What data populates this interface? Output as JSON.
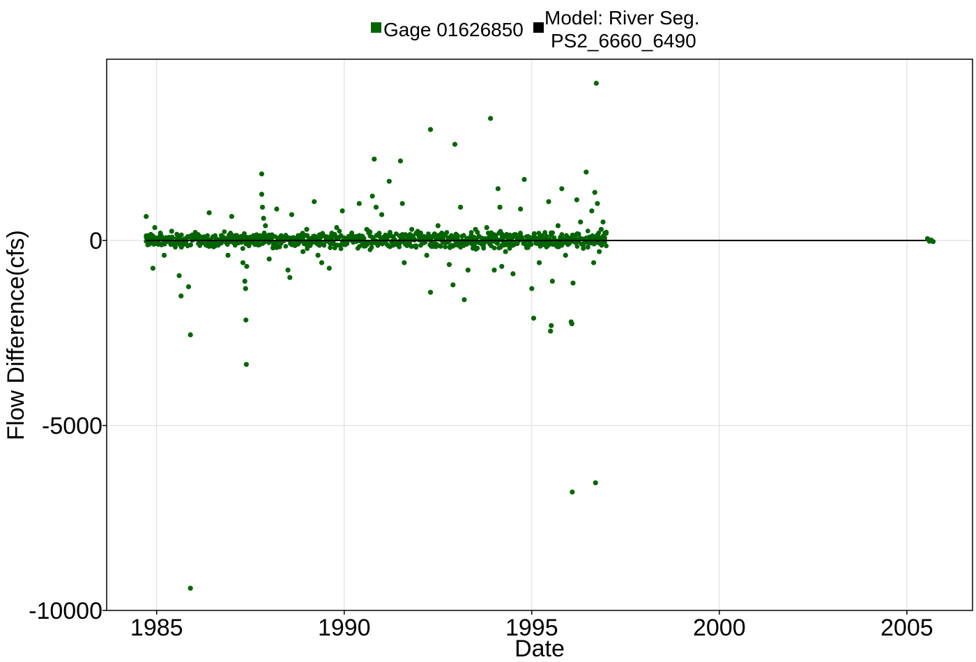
{
  "chart_data": {
    "type": "scatter",
    "title": "",
    "xlabel": "Date",
    "ylabel": "Flow Difference(cfs)",
    "x_scale": "date",
    "xlim": [
      "1983-09-01",
      "2006-10-01"
    ],
    "ylim": [
      -10000,
      4900
    ],
    "x_ticks": [
      1985,
      1990,
      1995,
      2000,
      2005
    ],
    "y_ticks": [
      -10000,
      -5000,
      0
    ],
    "y_tick_labels": [
      "-10000",
      "-5000",
      "0"
    ],
    "grid": true,
    "legend_position": "top",
    "series": [
      {
        "name": "Gage 01626850",
        "color": "#006400",
        "marker": "circle",
        "points": [
          [
            1984.72,
            650
          ],
          [
            1984.9,
            -750
          ],
          [
            1984.95,
            350
          ],
          [
            1985.1,
            200
          ],
          [
            1985.2,
            -400
          ],
          [
            1985.4,
            250
          ],
          [
            1985.6,
            -950
          ],
          [
            1985.65,
            -1500
          ],
          [
            1985.85,
            -1250
          ],
          [
            1985.9,
            -2550
          ],
          [
            1985.9,
            -9400
          ],
          [
            1986.4,
            750
          ],
          [
            1986.5,
            100
          ],
          [
            1986.9,
            -400
          ],
          [
            1987.0,
            650
          ],
          [
            1987.3,
            -600
          ],
          [
            1987.35,
            -1100
          ],
          [
            1987.37,
            -1300
          ],
          [
            1987.38,
            -2150
          ],
          [
            1987.39,
            -3350
          ],
          [
            1987.4,
            -700
          ],
          [
            1987.8,
            1800
          ],
          [
            1987.8,
            1250
          ],
          [
            1987.82,
            900
          ],
          [
            1987.85,
            600
          ],
          [
            1987.9,
            400
          ],
          [
            1988.0,
            -500
          ],
          [
            1988.1,
            -200
          ],
          [
            1988.2,
            850
          ],
          [
            1988.5,
            -800
          ],
          [
            1988.55,
            -1000
          ],
          [
            1988.6,
            700
          ],
          [
            1988.9,
            -300
          ],
          [
            1989.0,
            300
          ],
          [
            1989.2,
            1050
          ],
          [
            1989.3,
            -400
          ],
          [
            1989.4,
            -600
          ],
          [
            1989.6,
            -750
          ],
          [
            1989.8,
            350
          ],
          [
            1989.95,
            800
          ],
          [
            1990.2,
            200
          ],
          [
            1990.4,
            1000
          ],
          [
            1990.6,
            300
          ],
          [
            1990.75,
            1200
          ],
          [
            1990.8,
            2200
          ],
          [
            1990.85,
            900
          ],
          [
            1991.0,
            700
          ],
          [
            1991.2,
            1600
          ],
          [
            1991.5,
            2150
          ],
          [
            1991.55,
            1000
          ],
          [
            1991.6,
            -600
          ],
          [
            1991.8,
            300
          ],
          [
            1992.2,
            -400
          ],
          [
            1992.3,
            3000
          ],
          [
            1992.3,
            -1400
          ],
          [
            1992.5,
            400
          ],
          [
            1992.6,
            200
          ],
          [
            1992.8,
            -650
          ],
          [
            1992.9,
            -1200
          ],
          [
            1992.95,
            2600
          ],
          [
            1993.1,
            900
          ],
          [
            1993.2,
            -1600
          ],
          [
            1993.3,
            -800
          ],
          [
            1993.5,
            300
          ],
          [
            1993.8,
            350
          ],
          [
            1993.9,
            3300
          ],
          [
            1994.0,
            -800
          ],
          [
            1994.1,
            1400
          ],
          [
            1994.15,
            900
          ],
          [
            1994.2,
            -700
          ],
          [
            1994.3,
            -300
          ],
          [
            1994.5,
            -900
          ],
          [
            1994.7,
            850
          ],
          [
            1994.8,
            1650
          ],
          [
            1995.0,
            -1300
          ],
          [
            1995.05,
            -2100
          ],
          [
            1995.2,
            -600
          ],
          [
            1995.45,
            1050
          ],
          [
            1995.5,
            -2450
          ],
          [
            1995.52,
            -2300
          ],
          [
            1995.55,
            -1100
          ],
          [
            1995.7,
            400
          ],
          [
            1995.8,
            1400
          ],
          [
            1995.9,
            -400
          ],
          [
            1996.05,
            -2200
          ],
          [
            1996.07,
            -2250
          ],
          [
            1996.08,
            -6800
          ],
          [
            1996.1,
            -1150
          ],
          [
            1996.2,
            1100
          ],
          [
            1996.3,
            500
          ],
          [
            1996.45,
            1850
          ],
          [
            1996.6,
            800
          ],
          [
            1996.65,
            -600
          ],
          [
            1996.68,
            1300
          ],
          [
            1996.7,
            -6550
          ],
          [
            1996.72,
            4250
          ],
          [
            1996.75,
            1000
          ],
          [
            1996.8,
            -300
          ],
          [
            1996.85,
            300
          ],
          [
            1996.9,
            500
          ],
          [
            1996.95,
            200
          ],
          [
            2005.55,
            50
          ],
          [
            2005.6,
            -20
          ],
          [
            2005.65,
            10
          ],
          [
            2005.7,
            -30
          ]
        ]
      },
      {
        "name": "Model: River Seg. PS2_6660_6490",
        "color": "#000000",
        "marker": "line",
        "points": [
          [
            1984.72,
            0
          ],
          [
            1997.0,
            0
          ],
          [
            2005.55,
            0
          ],
          [
            2005.75,
            0
          ]
        ]
      }
    ]
  }
}
